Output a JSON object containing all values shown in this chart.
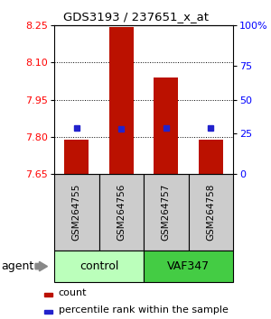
{
  "title": "GDS3193 / 237651_x_at",
  "samples": [
    "GSM264755",
    "GSM264756",
    "GSM264757",
    "GSM264758"
  ],
  "bar_values": [
    7.79,
    8.245,
    8.04,
    7.79
  ],
  "bar_base": 7.65,
  "percentile_values": [
    7.836,
    7.833,
    7.837,
    7.836
  ],
  "ylim": [
    7.65,
    8.25
  ],
  "yticks_left": [
    7.65,
    7.8,
    7.95,
    8.1,
    8.25
  ],
  "yticks_right_vals": [
    7.65,
    7.8125,
    7.95,
    8.0875,
    8.25
  ],
  "yticks_right_labels": [
    "0",
    "25",
    "50",
    "75",
    "100%"
  ],
  "grid_lines": [
    7.8,
    7.95,
    8.1
  ],
  "bar_color": "#bb1100",
  "percentile_color": "#2222cc",
  "sample_box_color": "#cccccc",
  "control_color": "#bbffbb",
  "vaf_color": "#44cc44",
  "group_labels": [
    "control",
    "VAF347"
  ],
  "agent_label": "agent",
  "legend_count_label": "count",
  "legend_pct_label": "percentile rank within the sample",
  "bar_width": 0.55
}
